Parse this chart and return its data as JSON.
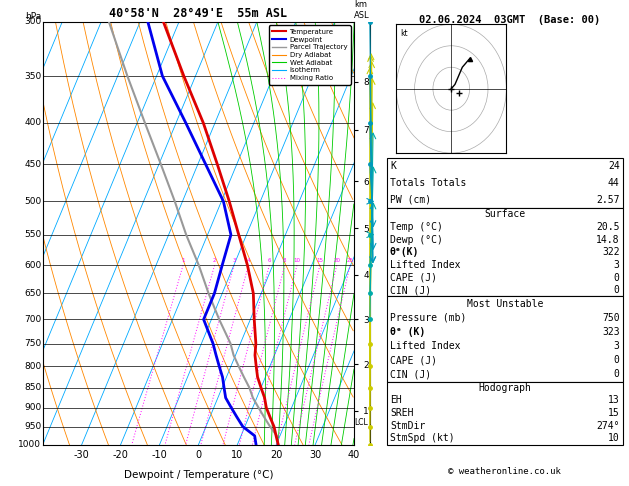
{
  "title_left": "40°58'N  28°49'E  55m ASL",
  "title_right": "02.06.2024  03GMT  (Base: 00)",
  "xlabel": "Dewpoint / Temperature (°C)",
  "pressure_levels": [
    300,
    350,
    400,
    450,
    500,
    550,
    600,
    650,
    700,
    750,
    800,
    850,
    900,
    950,
    1000
  ],
  "pressure_major": [
    300,
    350,
    400,
    450,
    500,
    550,
    600,
    650,
    700,
    750,
    800,
    850,
    900,
    950,
    1000
  ],
  "temp_ticks": [
    -30,
    -20,
    -10,
    0,
    10,
    20,
    30,
    40
  ],
  "isotherms_color": "#00aaff",
  "dry_adiabat_color": "#ff8800",
  "wet_adiabat_color": "#00cc00",
  "mixing_ratio_color": "#ff00ff",
  "temp_profile_color": "#dd0000",
  "dewp_profile_color": "#0000ee",
  "parcel_color": "#999999",
  "temp_profile": {
    "pressure": [
      1000,
      975,
      950,
      925,
      900,
      875,
      850,
      825,
      800,
      775,
      750,
      700,
      650,
      600,
      550,
      500,
      450,
      400,
      350,
      300
    ],
    "temp": [
      20.5,
      19.0,
      17.5,
      15.5,
      13.5,
      12.0,
      10.0,
      8.0,
      6.5,
      5.0,
      4.0,
      1.0,
      -2.0,
      -6.5,
      -12.0,
      -18.0,
      -25.0,
      -33.0,
      -43.0,
      -54.0
    ]
  },
  "dewp_profile": {
    "pressure": [
      1000,
      975,
      950,
      925,
      900,
      875,
      850,
      825,
      800,
      775,
      750,
      700,
      650,
      600,
      550,
      500,
      450,
      400,
      350,
      300
    ],
    "temp": [
      14.8,
      13.5,
      9.5,
      7.0,
      4.5,
      2.0,
      0.5,
      -1.0,
      -3.0,
      -5.0,
      -7.0,
      -12.0,
      -12.0,
      -13.0,
      -14.0,
      -19.5,
      -28.0,
      -37.5,
      -48.5,
      -58.0
    ]
  },
  "parcel_profile": {
    "pressure": [
      1000,
      975,
      950,
      925,
      900,
      875,
      850,
      825,
      800,
      775,
      750,
      700,
      650,
      600,
      550,
      500,
      450,
      400,
      350,
      300
    ],
    "temp": [
      20.5,
      19.2,
      16.5,
      14.0,
      11.5,
      9.0,
      7.0,
      4.5,
      2.0,
      -0.5,
      -2.5,
      -8.0,
      -13.5,
      -19.0,
      -25.5,
      -32.0,
      -39.5,
      -48.0,
      -57.5,
      -68.0
    ]
  },
  "lcl_pressure": 940,
  "mixing_ratios": [
    1,
    2,
    3,
    4,
    6,
    8,
    10,
    15,
    20,
    25
  ],
  "km_ticks": [
    1,
    2,
    3,
    4,
    5,
    6,
    7,
    8
  ],
  "km_pressures": [
    908,
    795,
    700,
    616,
    540,
    472,
    408,
    356
  ],
  "wind_barbs": {
    "pressure": [
      1000,
      950,
      900,
      850,
      800,
      750,
      700,
      650,
      600,
      550,
      500,
      450,
      400,
      350,
      300
    ],
    "speed_kt": [
      5,
      5,
      5,
      5,
      10,
      10,
      10,
      10,
      15,
      15,
      15,
      20,
      25,
      30,
      35
    ],
    "dir_deg": [
      180,
      190,
      200,
      210,
      220,
      230,
      240,
      250,
      260,
      270,
      270,
      280,
      290,
      300,
      310
    ]
  },
  "hodo_u": [
    0,
    1,
    2,
    3,
    4,
    5
  ],
  "hodo_v": [
    0,
    1,
    3,
    5,
    6,
    7
  ],
  "stats_K": 24,
  "stats_TT": 44,
  "stats_PW": "2.57",
  "stats_sfc_temp": "20.5",
  "stats_sfc_dewp": "14.8",
  "stats_sfc_thetae": "322",
  "stats_sfc_LI": "3",
  "stats_sfc_CAPE": "0",
  "stats_sfc_CIN": "0",
  "stats_mu_pres": "750",
  "stats_mu_thetae": "323",
  "stats_mu_LI": "3",
  "stats_mu_CAPE": "0",
  "stats_mu_CIN": "0",
  "stats_EH": "13",
  "stats_SREH": "15",
  "stats_StmDir": "274°",
  "stats_StmSpd": "10"
}
